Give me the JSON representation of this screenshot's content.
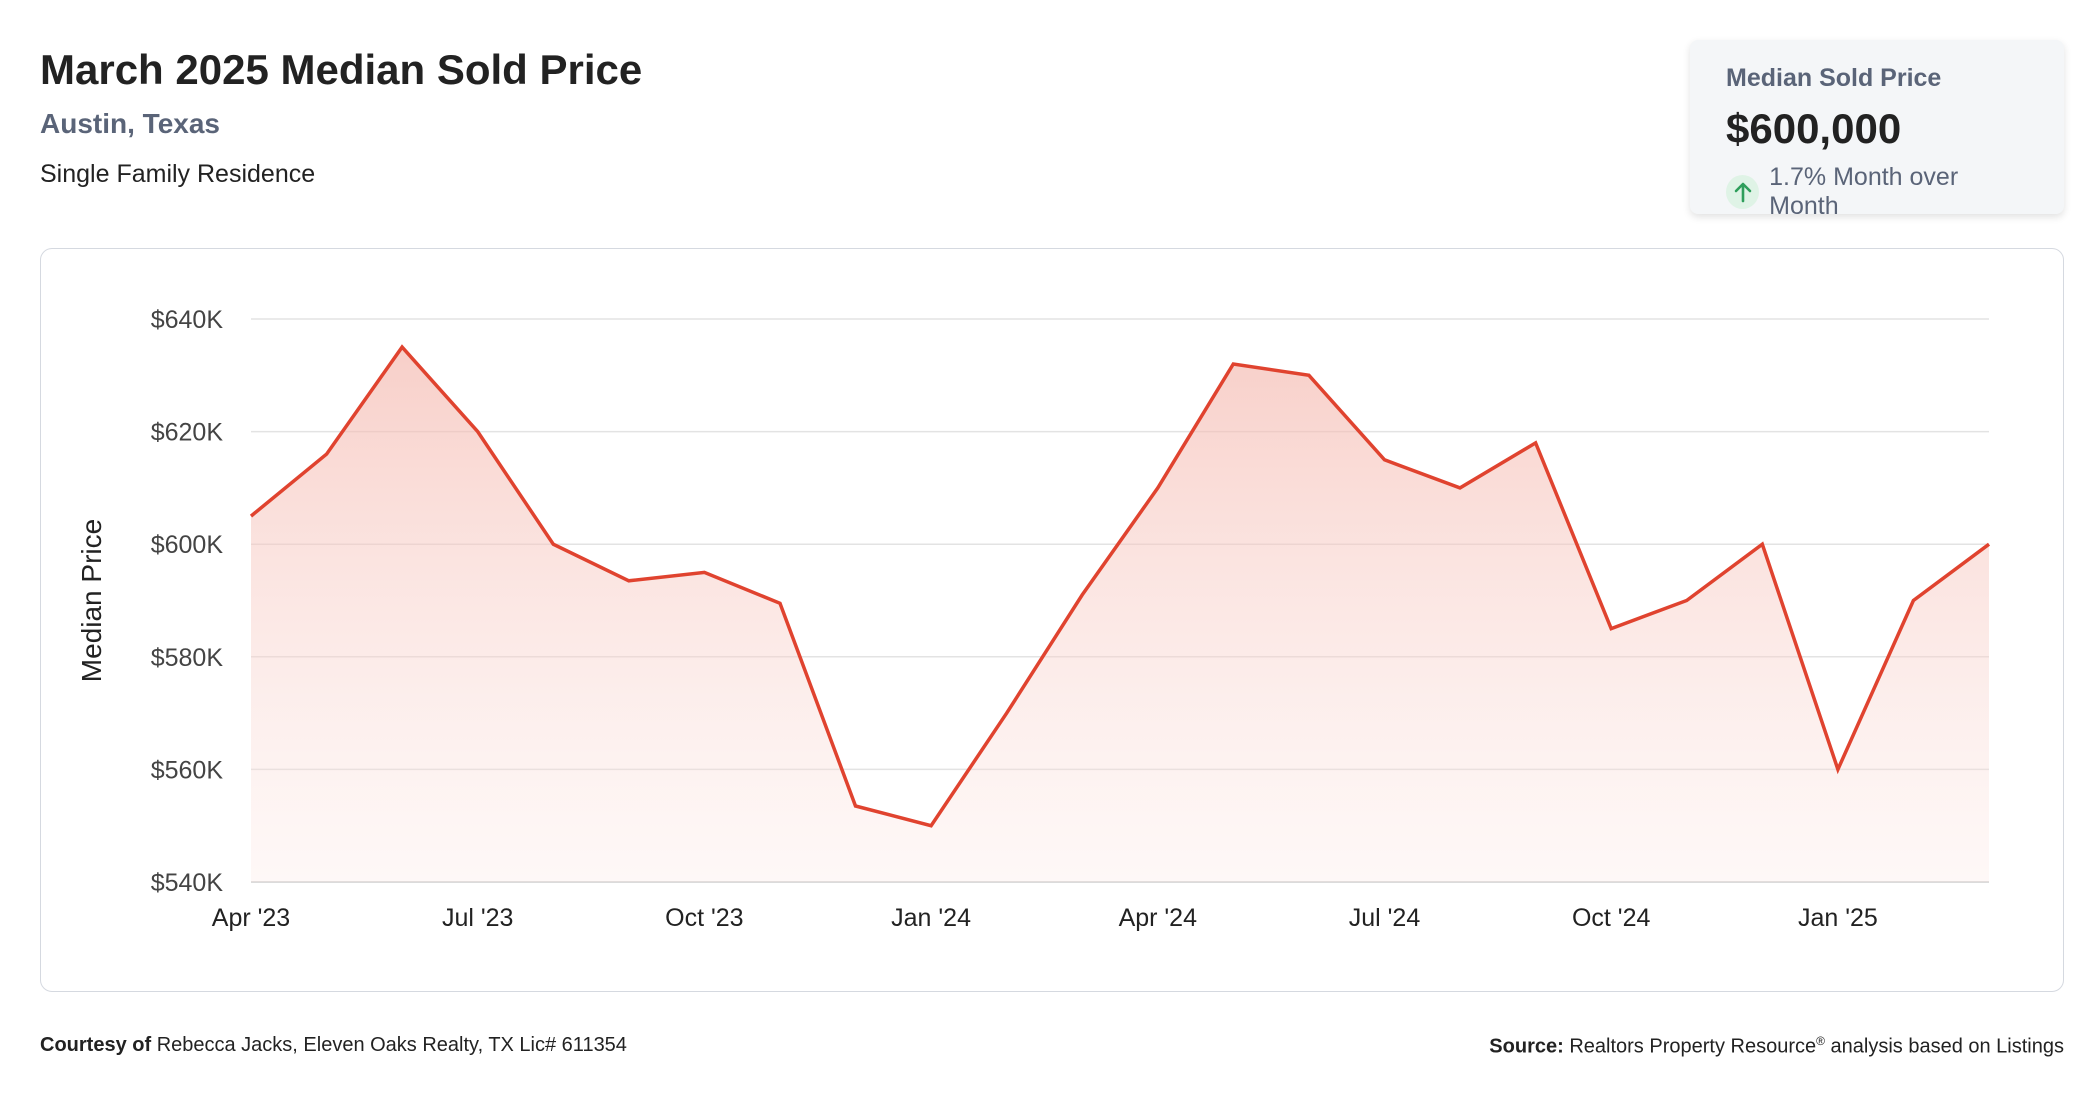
{
  "header": {
    "title": "March 2025 Median Sold Price",
    "location": "Austin, Texas",
    "property_type": "Single Family Residence"
  },
  "stat_card": {
    "label": "Median Sold Price",
    "value": "$600,000",
    "change": "1.7% Month over Month",
    "change_direction": "up",
    "change_icon": "arrow-up-icon"
  },
  "footer": {
    "courtesy_label": "Courtesy of",
    "courtesy_text": "Rebecca Jacks, Eleven Oaks Realty, TX Lic# 611354",
    "source_label": "Source:",
    "source_text": "Realtors Property Resource",
    "source_mark": "®",
    "source_suffix": "analysis based on Listings"
  },
  "colors": {
    "line": "#e0432f",
    "fill": "#f7c7c0",
    "grid": "#e3e3e3",
    "title": "#222222",
    "subtitle": "#5a6478",
    "arrow": "#2e9e5b"
  },
  "chart_data": {
    "type": "area",
    "ylabel": "Median Price",
    "ylim": [
      540000,
      640000
    ],
    "y_ticks": [
      540000,
      560000,
      580000,
      600000,
      620000,
      640000
    ],
    "y_tick_labels": [
      "$540K",
      "$560K",
      "$580K",
      "$600K",
      "$620K",
      "$640K"
    ],
    "x": [
      "Apr '23",
      "May '23",
      "Jun '23",
      "Jul '23",
      "Aug '23",
      "Sep '23",
      "Oct '23",
      "Nov '23",
      "Dec '23",
      "Jan '24",
      "Feb '24",
      "Mar '24",
      "Apr '24",
      "May '24",
      "Jun '24",
      "Jul '24",
      "Aug '24",
      "Sep '24",
      "Oct '24",
      "Nov '24",
      "Dec '24",
      "Jan '25",
      "Feb '25",
      "Mar '25"
    ],
    "x_tick_labels": [
      "Apr '23",
      "Jul '23",
      "Oct '23",
      "Jan '24",
      "Apr '24",
      "Jul '24",
      "Oct '24",
      "Jan '25"
    ],
    "x_tick_indices": [
      0,
      3,
      6,
      9,
      12,
      15,
      18,
      21
    ],
    "values": [
      605000,
      616000,
      635000,
      620000,
      600000,
      593500,
      595000,
      589500,
      553500,
      550000,
      570000,
      591000,
      610000,
      632000,
      630000,
      615000,
      610000,
      618000,
      585000,
      590000,
      600000,
      560000,
      590000,
      600000
    ],
    "grid": true,
    "legend": "none"
  }
}
